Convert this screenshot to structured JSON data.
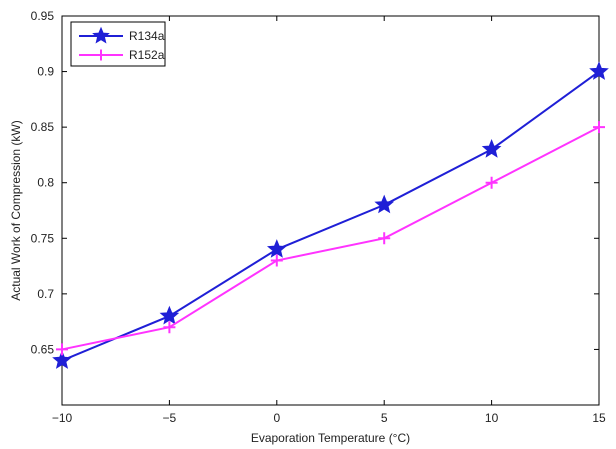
{
  "chart_data": {
    "type": "line",
    "title": "",
    "xlabel": "Evaporation Temperature (°C)",
    "ylabel": "Actual Work of Compression (kW)",
    "xlim": [
      -10,
      15
    ],
    "ylim": [
      0.6,
      0.95
    ],
    "xticks": [
      -10,
      -5,
      0,
      5,
      10,
      15
    ],
    "xtick_labels": [
      "−10",
      "−5",
      "0",
      "5",
      "10",
      "15"
    ],
    "yticks": [
      0.65,
      0.7,
      0.75,
      0.8,
      0.85,
      0.9,
      0.95
    ],
    "ytick_labels": [
      "0.65",
      "0.7",
      "0.75",
      "0.8",
      "0.85",
      "0.9",
      "0.95"
    ],
    "grid": false,
    "legend_position": "top-left",
    "x": [
      -10,
      -5,
      0,
      5,
      10,
      15
    ],
    "series": [
      {
        "name": "R134a",
        "values": [
          0.64,
          0.68,
          0.74,
          0.78,
          0.83,
          0.9
        ],
        "color": "#1f1fd6",
        "marker": "star"
      },
      {
        "name": "R152a",
        "values": [
          0.65,
          0.67,
          0.73,
          0.75,
          0.8,
          0.85
        ],
        "color": "#ff33ff",
        "marker": "plus"
      }
    ]
  }
}
